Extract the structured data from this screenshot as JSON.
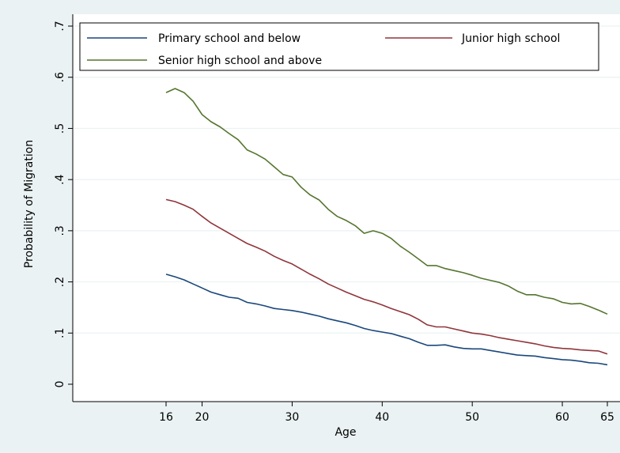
{
  "chart_data": {
    "type": "line",
    "xlabel": "Age",
    "ylabel": "Probability of Migration",
    "xlim": [
      16,
      65
    ],
    "ylim": [
      0,
      0.7
    ],
    "x_ticks": [
      16,
      20,
      30,
      40,
      50,
      60,
      65
    ],
    "x_tick_labels": [
      "16",
      "20",
      "30",
      "40",
      "50",
      "60",
      "65"
    ],
    "y_ticks": [
      0,
      0.1,
      0.2,
      0.3,
      0.4,
      0.5,
      0.6,
      0.7
    ],
    "y_tick_labels": [
      "0",
      ".1",
      ".2",
      ".3",
      ".4",
      ".5",
      ".6",
      ".7"
    ],
    "grid": "horizontal",
    "legend_position": "top",
    "x": [
      16,
      17,
      18,
      19,
      20,
      21,
      22,
      23,
      24,
      25,
      26,
      27,
      28,
      29,
      30,
      31,
      32,
      33,
      34,
      35,
      36,
      37,
      38,
      39,
      40,
      41,
      42,
      43,
      44,
      45,
      46,
      47,
      48,
      49,
      50,
      51,
      52,
      53,
      54,
      55,
      56,
      57,
      58,
      59,
      60,
      61,
      62,
      63,
      64,
      65
    ],
    "series": [
      {
        "name": "Primary school and below",
        "color": "#1a477c",
        "values": [
          0.215,
          0.21,
          0.204,
          0.196,
          0.188,
          0.18,
          0.175,
          0.17,
          0.168,
          0.16,
          0.157,
          0.153,
          0.148,
          0.146,
          0.144,
          0.141,
          0.137,
          0.133,
          0.128,
          0.124,
          0.12,
          0.115,
          0.109,
          0.105,
          0.102,
          0.099,
          0.094,
          0.089,
          0.082,
          0.076,
          0.076,
          0.077,
          0.073,
          0.07,
          0.069,
          0.069,
          0.066,
          0.063,
          0.06,
          0.057,
          0.056,
          0.055,
          0.052,
          0.05,
          0.048,
          0.047,
          0.045,
          0.042,
          0.041,
          0.038
        ]
      },
      {
        "name": "Junior high school",
        "color": "#90353b",
        "values": [
          0.361,
          0.357,
          0.35,
          0.342,
          0.328,
          0.315,
          0.305,
          0.295,
          0.285,
          0.275,
          0.268,
          0.26,
          0.25,
          0.242,
          0.235,
          0.225,
          0.215,
          0.206,
          0.196,
          0.188,
          0.18,
          0.173,
          0.166,
          0.161,
          0.155,
          0.148,
          0.142,
          0.136,
          0.127,
          0.116,
          0.112,
          0.112,
          0.108,
          0.104,
          0.1,
          0.098,
          0.095,
          0.091,
          0.088,
          0.085,
          0.082,
          0.079,
          0.075,
          0.072,
          0.07,
          0.069,
          0.067,
          0.066,
          0.065,
          0.059
        ]
      },
      {
        "name": "Senior high school and above",
        "color": "#55752f",
        "values": [
          0.57,
          0.578,
          0.57,
          0.553,
          0.527,
          0.513,
          0.503,
          0.49,
          0.478,
          0.458,
          0.45,
          0.44,
          0.425,
          0.41,
          0.405,
          0.385,
          0.37,
          0.36,
          0.342,
          0.328,
          0.32,
          0.31,
          0.295,
          0.3,
          0.295,
          0.285,
          0.27,
          0.258,
          0.245,
          0.232,
          0.232,
          0.226,
          0.222,
          0.218,
          0.213,
          0.207,
          0.203,
          0.199,
          0.192,
          0.182,
          0.175,
          0.175,
          0.17,
          0.167,
          0.16,
          0.157,
          0.158,
          0.152,
          0.145,
          0.137
        ]
      }
    ]
  }
}
